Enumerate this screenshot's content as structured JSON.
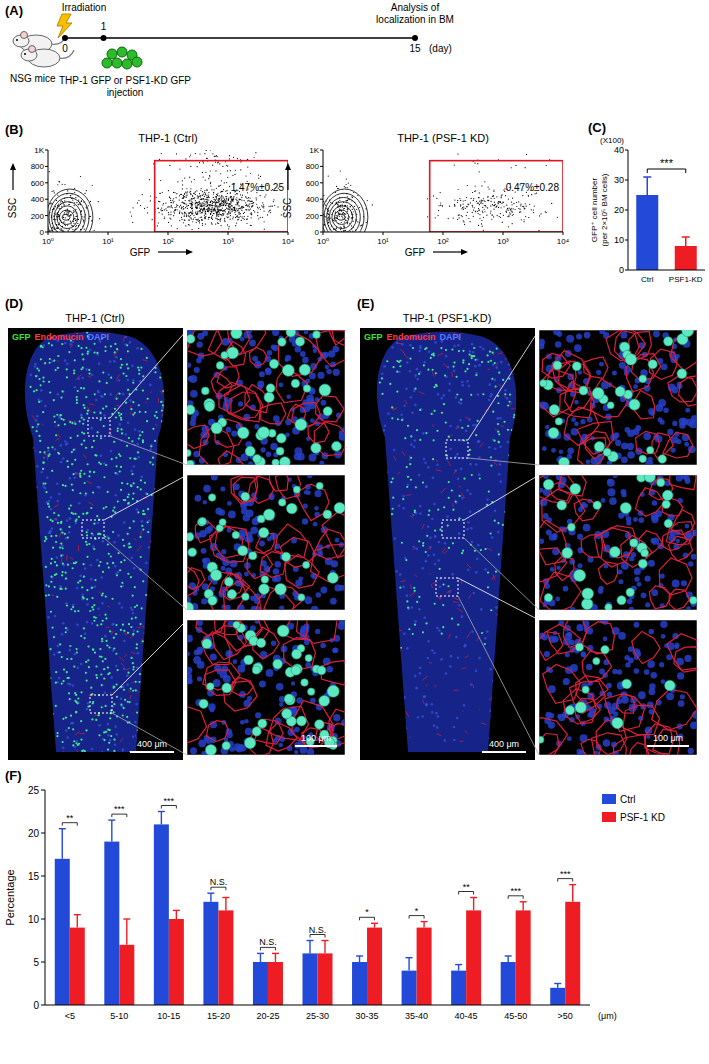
{
  "panel_labels": [
    "(A)",
    "(B)",
    "(C)",
    "(D)",
    "(E)",
    "(F)"
  ],
  "schematic": {
    "mouse_label": "NSG mice",
    "irradiation": "Irradiation",
    "injection": "THP-1 GFP or PSF1-KD GFP injection",
    "analysis": "Analysis of localization in BM",
    "days": [
      0,
      1,
      15
    ],
    "day_unit": "(day)"
  },
  "flow_cytometry": [
    {
      "title": "THP-1 (Ctrl)",
      "gate_label": "1.47%±0.25",
      "x_label": "GFP",
      "y_label": "SSC",
      "log": "x",
      "xlim": [
        1,
        10000
      ],
      "xticks": [
        {
          "value": 1,
          "label": "10⁰"
        },
        {
          "value": 10,
          "label": "10¹"
        },
        {
          "value": 100,
          "label": "10²"
        },
        {
          "value": 1000,
          "label": "10³"
        },
        {
          "value": 10000,
          "label": "10⁴"
        }
      ],
      "ylim": [
        0,
        1000
      ],
      "yticks": [
        0,
        200,
        400,
        600,
        800,
        {
          "value": 1000,
          "label": "1K"
        }
      ],
      "gate_x": [
        60,
        10000
      ],
      "gate_y": [
        0,
        870
      ]
    },
    {
      "title": "THP-1 (PSF-1 KD)",
      "gate_label": "0.47%±0.28",
      "x_label": "GFP",
      "y_label": "SSC",
      "log": "x",
      "xlim": [
        1,
        10000
      ],
      "xticks": [
        {
          "value": 1,
          "label": "10⁰"
        },
        {
          "value": 10,
          "label": "10¹"
        },
        {
          "value": 100,
          "label": "10²"
        },
        {
          "value": 1000,
          "label": "10³"
        },
        {
          "value": 10000,
          "label": "10⁴"
        }
      ],
      "ylim": [
        0,
        1000
      ],
      "yticks": [
        0,
        200,
        400,
        600,
        800,
        {
          "value": 1000,
          "label": "1K"
        }
      ],
      "gate_x": [
        60,
        10000
      ],
      "gate_y": [
        0,
        870
      ]
    }
  ],
  "microscopy": [
    {
      "title": "THP-1 (Ctrl)",
      "channels": [
        "GFP",
        "Endomucin",
        "DAPI"
      ],
      "scale_overview": "400 μm",
      "scale_zoom": "100 μm"
    },
    {
      "title": "THP-1 (PSF1-KD)",
      "channels": [
        "GFP",
        "Endomucin",
        "DAPI"
      ],
      "scale_overview": "400 μm",
      "scale_zoom": "100 μm"
    }
  ],
  "chart_data": [
    {
      "type": "bar",
      "y_label": [
        "GFP⁺ cell number",
        "(per 2×10⁵ BM cells)"
      ],
      "y_scale_label": "(X100)",
      "categories": [
        "Ctrl",
        "PSF1-KD"
      ],
      "values": [
        25,
        8
      ],
      "errors": [
        6,
        3
      ],
      "colors": [
        "#2349d8",
        "#ee1d23"
      ],
      "ylim": [
        0,
        40
      ],
      "yticks": [
        0,
        10,
        20,
        30,
        40
      ],
      "significance": "***"
    },
    {
      "type": "bar",
      "y_label": "Percentage",
      "x_label": "(μm)",
      "categories": [
        "<5",
        "5-10",
        "10-15",
        "15-20",
        "20-25",
        "25-30",
        "30-35",
        "35-40",
        "40-45",
        "45-50",
        ">50"
      ],
      "series": [
        {
          "name": "Ctrl",
          "color": "#2349d8",
          "values": [
            17,
            19,
            21,
            12,
            5,
            6,
            5,
            4,
            4,
            5,
            2
          ],
          "errors": [
            3.5,
            2.5,
            1.5,
            1,
            1,
            1.5,
            0.7,
            1.5,
            0.7,
            0.7,
            0.5
          ]
        },
        {
          "name": "PSF-1 KD",
          "color": "#ee1d23",
          "values": [
            9,
            7,
            10,
            11,
            5,
            6,
            9,
            9,
            11,
            11,
            12
          ],
          "errors": [
            1.5,
            3,
            1,
            1.5,
            1,
            1.5,
            0.5,
            0.7,
            1.5,
            1,
            2
          ]
        }
      ],
      "significance": [
        "**",
        "***",
        "***",
        "N.S.",
        "N.S.",
        "N.S.",
        "*",
        "*",
        "**",
        "***",
        "***"
      ],
      "ylim": [
        0,
        25
      ],
      "yticks": [
        0,
        5,
        10,
        15,
        20,
        25
      ],
      "legend": "right"
    }
  ]
}
